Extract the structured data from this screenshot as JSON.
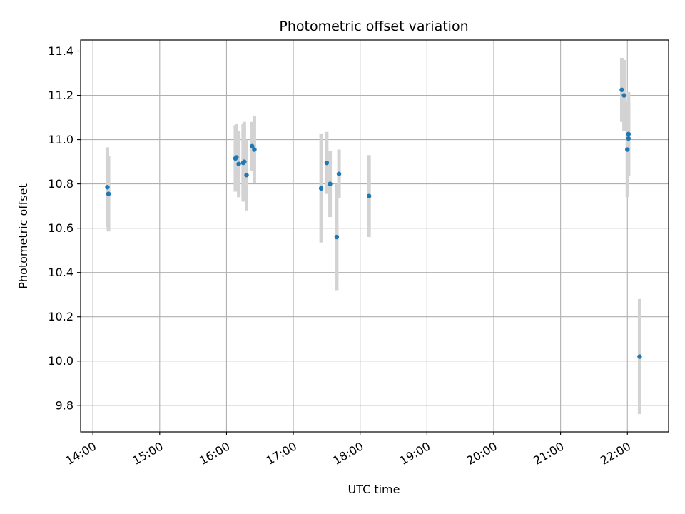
{
  "chart_data": {
    "type": "scatter",
    "title": "Photometric offset variation",
    "xlabel": "UTC time",
    "ylabel": "Photometric offset",
    "x_tick_labels": [
      "14:00",
      "15:00",
      "16:00",
      "17:00",
      "18:00",
      "19:00",
      "20:00",
      "21:00",
      "22:00"
    ],
    "y_tick_labels": [
      "9.8",
      "10.0",
      "10.2",
      "10.4",
      "10.6",
      "10.8",
      "11.0",
      "11.2",
      "11.4"
    ],
    "xlim": [
      "13:49",
      "22:37"
    ],
    "ylim": [
      9.68,
      11.45
    ],
    "grid": true,
    "marker_color": "#1f77b4",
    "errorbar_color": "#d3d3d3",
    "points": [
      {
        "x": "14:13",
        "y": 10.785,
        "err": 0.18
      },
      {
        "x": "14:14",
        "y": 10.755,
        "err": 0.17
      },
      {
        "x": "16:08",
        "y": 10.915,
        "err": 0.15
      },
      {
        "x": "16:09",
        "y": 10.92,
        "err": 0.15
      },
      {
        "x": "16:11",
        "y": 10.89,
        "err": 0.15
      },
      {
        "x": "16:15",
        "y": 10.895,
        "err": 0.175
      },
      {
        "x": "16:16",
        "y": 10.9,
        "err": 0.18
      },
      {
        "x": "16:18",
        "y": 10.84,
        "err": 0.16
      },
      {
        "x": "16:23",
        "y": 10.97,
        "err": 0.11
      },
      {
        "x": "16:25",
        "y": 10.955,
        "err": 0.15
      },
      {
        "x": "17:25",
        "y": 10.78,
        "err": 0.245
      },
      {
        "x": "17:30",
        "y": 10.895,
        "err": 0.14
      },
      {
        "x": "17:33",
        "y": 10.8,
        "err": 0.15
      },
      {
        "x": "17:39",
        "y": 10.56,
        "err": 0.24
      },
      {
        "x": "17:41",
        "y": 10.845,
        "err": 0.11
      },
      {
        "x": "18:08",
        "y": 10.745,
        "err": 0.185
      },
      {
        "x": "21:55",
        "y": 11.225,
        "err": 0.145
      },
      {
        "x": "21:57",
        "y": 11.2,
        "err": 0.16
      },
      {
        "x": "22:00",
        "y": 10.955,
        "err": 0.215
      },
      {
        "x": "22:01",
        "y": 11.005,
        "err": 0.165
      },
      {
        "x": "22:01",
        "y": 11.025,
        "err": 0.19
      },
      {
        "x": "22:11",
        "y": 10.02,
        "err": 0.26
      }
    ]
  }
}
